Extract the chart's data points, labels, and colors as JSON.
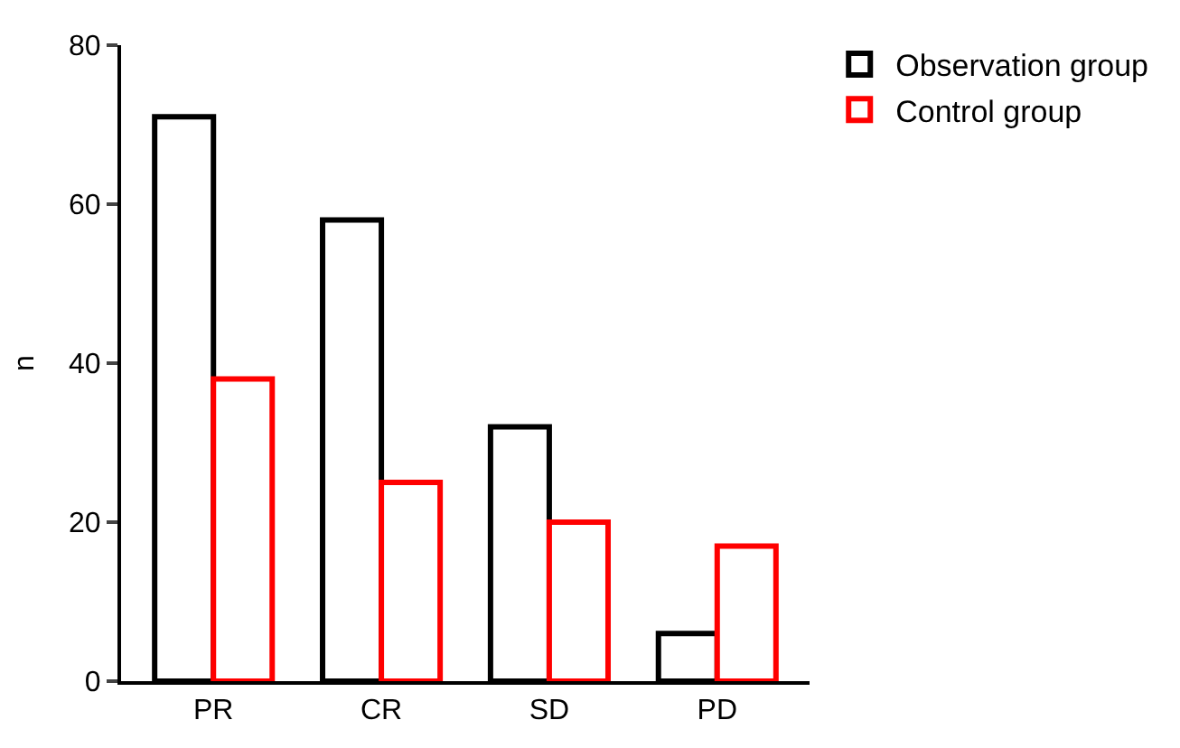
{
  "chart_data": {
    "type": "bar",
    "ylabel": "n",
    "categories": [
      "PR",
      "CR",
      "SD",
      "PD"
    ],
    "series": [
      {
        "name": "Observation group",
        "color": "#000000",
        "values": [
          71,
          58,
          32,
          6
        ]
      },
      {
        "name": "Control group",
        "color": "#ff0000",
        "values": [
          38,
          25,
          20,
          17
        ]
      }
    ],
    "ylim": [
      0,
      80
    ],
    "yticks": [
      0,
      20,
      40,
      60,
      80
    ],
    "legend": "top right"
  }
}
